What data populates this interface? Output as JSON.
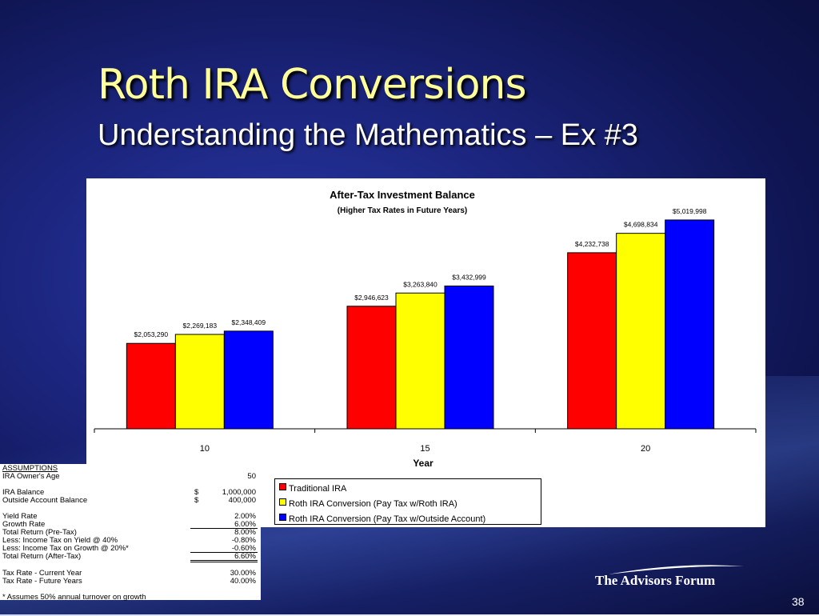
{
  "slide": {
    "title": "Roth IRA Conversions",
    "subtitle": "Understanding the Mathematics – Ex #3",
    "page_number": "38",
    "logo_text": "The Advisors Forum"
  },
  "chart_data": {
    "type": "bar",
    "title": "After-Tax Investment Balance",
    "subtitle": "(Higher Tax Rates in Future Years)",
    "xlabel": "Year",
    "ylabel": "",
    "categories": [
      "10",
      "15",
      "20"
    ],
    "ylim": [
      0,
      5500000
    ],
    "grid": false,
    "legend_position": "bottom",
    "series": [
      {
        "name": "Traditional IRA",
        "color": "#ff0000",
        "values": [
          2053290,
          2946623,
          4232738
        ],
        "labels": [
          "$2,053,290",
          "$2,946,623",
          "$4,232,738"
        ]
      },
      {
        "name": "Roth IRA Conversion (Pay Tax w/Roth IRA)",
        "color": "#ffff00",
        "values": [
          2269183,
          3263840,
          4698834
        ],
        "labels": [
          "$2,269,183",
          "$3,263,840",
          "$4,698,834"
        ]
      },
      {
        "name": "Roth IRA Conversion (Pay Tax w/Outside Account)",
        "color": "#0000ff",
        "values": [
          2348409,
          3432999,
          5019998
        ],
        "labels": [
          "$2,348,409",
          "$3,432,999",
          "$5,019,998"
        ]
      }
    ]
  },
  "assumptions": {
    "header": "ASSUMPTIONS",
    "owner_age_label": "IRA Owner's Age",
    "owner_age_value": "50",
    "ira_balance_label": "IRA Balance",
    "ira_balance_dollar": "$",
    "ira_balance_value": "1,000,000",
    "outside_label": "Outside Account Balance",
    "outside_dollar": "$",
    "outside_value": "400,000",
    "yield_label": "Yield Rate",
    "yield_value": "2.00%",
    "growth_label": "Growth Rate",
    "growth_value": "6.00%",
    "total_pre_label": "Total Return (Pre-Tax)",
    "total_pre_value": "8.00%",
    "less_yield_label": "Less: Income Tax on Yield @ 40%",
    "less_yield_value": "-0.80%",
    "less_growth_label": "Less: Income Tax on Growth @ 20%*",
    "less_growth_value": "-0.60%",
    "total_after_label": "Total Return (After-Tax)",
    "total_after_value": "6.60%",
    "tax_current_label": "Tax Rate - Current Year",
    "tax_current_value": "30.00%",
    "tax_future_label": "Tax Rate - Future Years",
    "tax_future_value": "40.00%",
    "footnote": "* Assumes 50% annual turnover on growth"
  }
}
